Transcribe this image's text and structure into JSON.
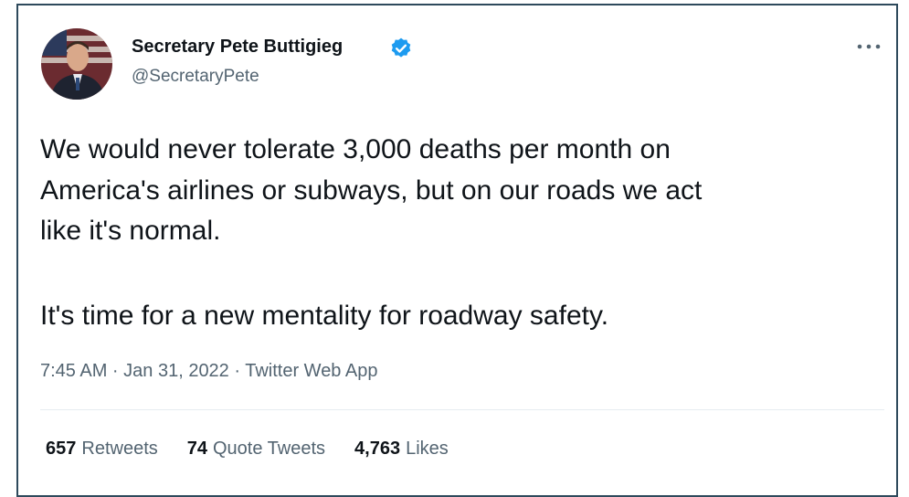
{
  "author": {
    "name": "Secretary Pete Buttigieg",
    "handle": "@SecretaryPete"
  },
  "body": {
    "paragraphs": [
      [
        "We would never tolerate 3,000 deaths per month on",
        "America's airlines or subways, but on our roads we act",
        "like it's normal."
      ],
      [
        "It's time for a new mentality for roadway safety."
      ]
    ]
  },
  "timestamp": "7:45 AM · Jan 31, 2022 · Twitter Web App",
  "stats": [
    {
      "count": "657",
      "label": "Retweets"
    },
    {
      "count": "74",
      "label": "Quote Tweets"
    },
    {
      "count": "4,763",
      "label": "Likes"
    }
  ]
}
